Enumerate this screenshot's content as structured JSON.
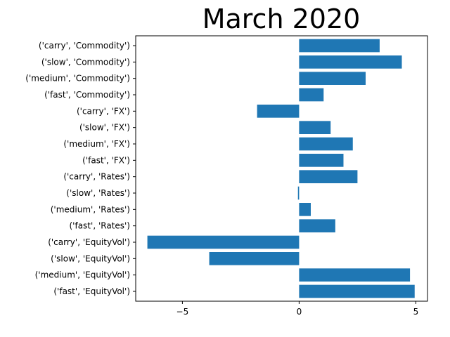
{
  "chart_data": {
    "type": "bar",
    "orientation": "horizontal",
    "title": "March 2020",
    "xlabel": "",
    "ylabel": "",
    "xlim": [
      -7.0,
      5.5
    ],
    "xticks": [
      -5,
      0,
      5
    ],
    "xtick_labels": [
      "−5",
      "0",
      "5"
    ],
    "grid": false,
    "bar_color": "#1f77b4",
    "categories": [
      "('fast', 'EquityVol')",
      "('medium', 'EquityVol')",
      "('slow', 'EquityVol')",
      "('carry', 'EquityVol')",
      "('fast', 'Rates')",
      "('medium', 'Rates')",
      "('slow', 'Rates')",
      "('carry', 'Rates')",
      "('fast', 'FX')",
      "('medium', 'FX')",
      "('slow', 'FX')",
      "('carry', 'FX')",
      "('fast', 'Commodity')",
      "('medium', 'Commodity')",
      "('slow', 'Commodity')",
      "('carry', 'Commodity')"
    ],
    "values": [
      4.95,
      4.75,
      -3.85,
      -6.5,
      1.55,
      0.5,
      -0.05,
      2.5,
      1.9,
      2.3,
      1.35,
      -1.8,
      1.05,
      2.85,
      4.4,
      3.45
    ]
  }
}
